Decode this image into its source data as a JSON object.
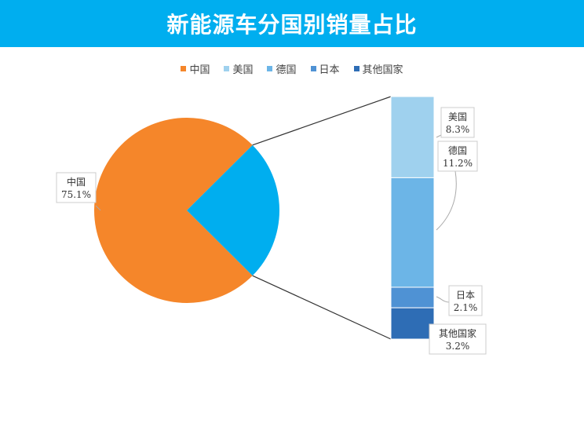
{
  "chart_data": {
    "type": "pie",
    "subtype": "bar-of-pie",
    "title": "新能源车分国别销量占比",
    "legend_position": "top",
    "categories": [
      "中国",
      "美国",
      "德国",
      "日本",
      "其他国家"
    ],
    "values": [
      75.1,
      8.3,
      11.2,
      2.1,
      3.2
    ],
    "value_labels": [
      "75.1%",
      "8.3%",
      "11.2%",
      "2.1%",
      "3.2%"
    ],
    "pie_slices": [
      {
        "name": "中国",
        "value": 75.1
      },
      {
        "name": "",
        "value": 24.9
      }
    ],
    "bar_items": [
      "美国",
      "德国",
      "日本",
      "其他国家"
    ],
    "colors": {
      "中国": "#f5862a",
      "other_slice": "#00aeef",
      "美国": "#9fd1ee",
      "德国": "#6cb5e7",
      "日本": "#4f92d4",
      "其他国家": "#2e6db5"
    },
    "title_bar_color": "#00aeef"
  }
}
